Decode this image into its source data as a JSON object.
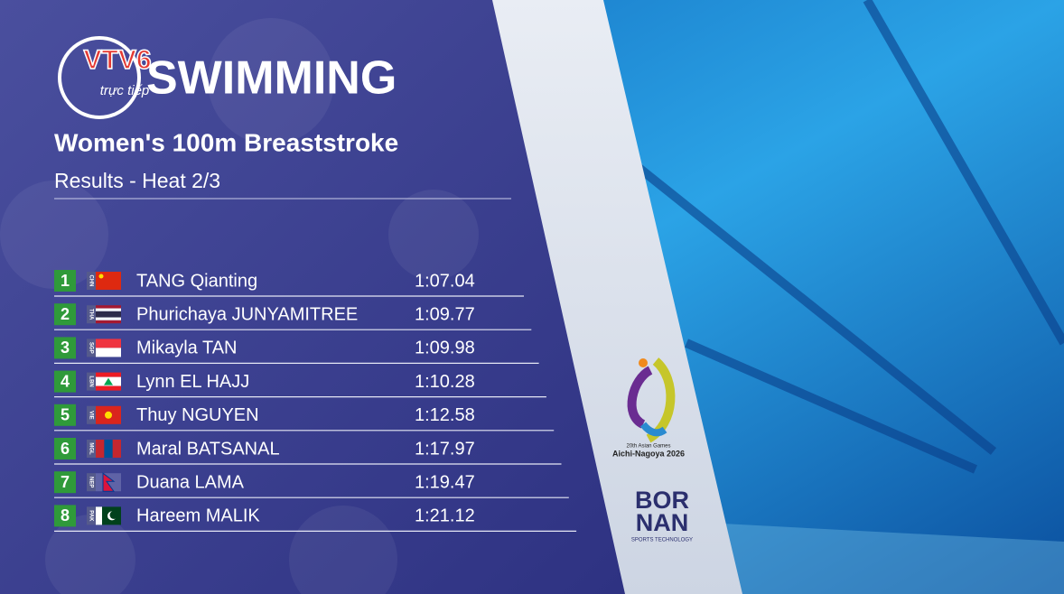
{
  "header": {
    "channel": "VTV6",
    "live": "trực tiếp",
    "sport": "SWIMMING",
    "event": "Women's 100m Breaststroke",
    "stage": "Results - Heat 2/3"
  },
  "table": {
    "rows": [
      {
        "rank": 1,
        "code": "CHN",
        "name": "TANG Qianting",
        "time": "1:07.04"
      },
      {
        "rank": 2,
        "code": "THA",
        "name": "Phurichaya JUNYAMITREE",
        "time": "1:09.77"
      },
      {
        "rank": 3,
        "code": "SGP",
        "name": "Mikayla TAN",
        "time": "1:09.98"
      },
      {
        "rank": 4,
        "code": "LBN",
        "name": "Lynn EL HAJJ",
        "time": "1:10.28"
      },
      {
        "rank": 5,
        "code": "VIE",
        "name": "Thuy NGUYEN",
        "time": "1:12.58"
      },
      {
        "rank": 6,
        "code": "MGL",
        "name": "Maral BATSANAL",
        "time": "1:17.97"
      },
      {
        "rank": 7,
        "code": "NEP",
        "name": "Duana LAMA",
        "time": "1:19.47"
      },
      {
        "rank": 8,
        "code": "PAK",
        "name": "Hareem MALIK",
        "time": "1:21.12"
      }
    ]
  },
  "sponsors": {
    "games_line1": "20th Asian Games",
    "games_line2": "Aichi-Nagoya 2026",
    "brand_top": "BOR",
    "brand_bottom": "NAN",
    "brand_tagline": "SPORTS TECHNOLOGY"
  }
}
